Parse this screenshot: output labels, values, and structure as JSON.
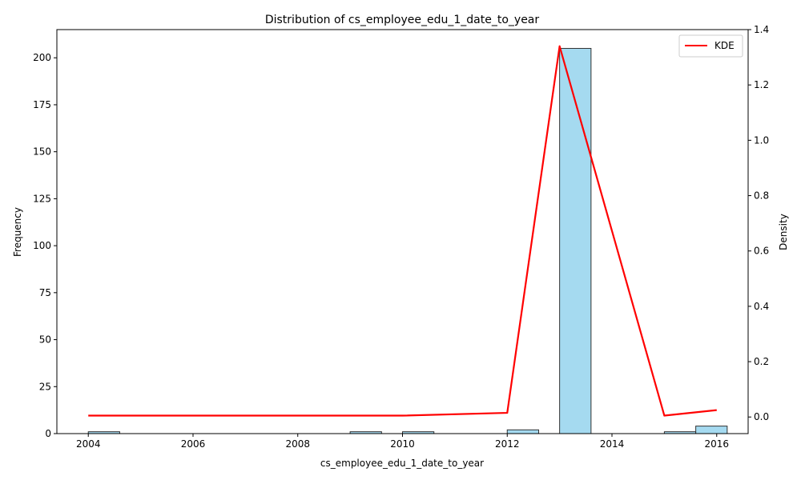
{
  "chart_data": {
    "type": "bar",
    "title": "Distribution of cs_employee_edu_1_date_to_year",
    "xlabel": "cs_employee_edu_1_date_to_year",
    "ylabel": "Frequency",
    "y2label": "Density",
    "xlim": [
      2003.4,
      2016.6
    ],
    "ylim": [
      0,
      215
    ],
    "y2lim": [
      -0.06,
      1.4
    ],
    "x_ticks": [
      2004,
      2006,
      2008,
      2010,
      2012,
      2014,
      2016
    ],
    "y_ticks": [
      0,
      25,
      50,
      75,
      100,
      125,
      150,
      175,
      200
    ],
    "y2_ticks": [
      0.0,
      0.2,
      0.4,
      0.6,
      0.8,
      1.0,
      1.2,
      1.4
    ],
    "bin_width": 0.6,
    "histogram": [
      {
        "x": 2004,
        "count": 1
      },
      {
        "x": 2009,
        "count": 1
      },
      {
        "x": 2010,
        "count": 1
      },
      {
        "x": 2012,
        "count": 2
      },
      {
        "x": 2013,
        "count": 205
      },
      {
        "x": 2015,
        "count": 1
      },
      {
        "x": 2015.6,
        "count": 4
      }
    ],
    "bar_color": "#87CEEB",
    "bar_edge_color": "#333333",
    "kde": {
      "name": "KDE",
      "color": "#ff0000",
      "x": [
        2004,
        2010,
        2012,
        2013,
        2015,
        2016
      ],
      "y": [
        0.005,
        0.005,
        0.015,
        1.34,
        0.005,
        0.025
      ]
    },
    "legend_position": "top-right",
    "grid": false
  }
}
